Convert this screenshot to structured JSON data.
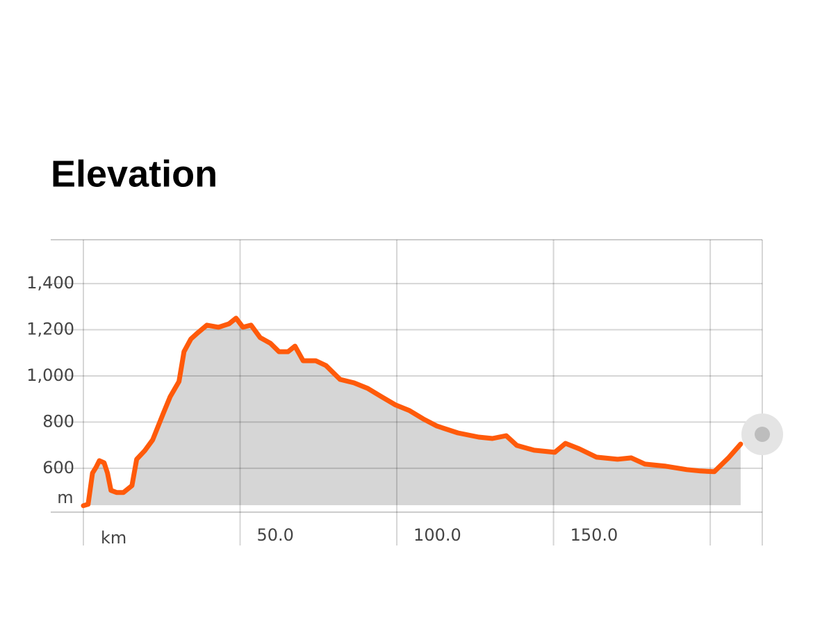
{
  "chart_data": {
    "type": "area",
    "title": "Elevation",
    "y_unit": "m",
    "x_unit": "km",
    "x": [
      0,
      1.5,
      2.9,
      4,
      5.1,
      6.6,
      7.7,
      8.8,
      10.6,
      12.8,
      15.5,
      17,
      19.5,
      22.1,
      25.4,
      27.7,
      30.5,
      32.1,
      34.3,
      36.5,
      39.4,
      43.1,
      46.5,
      48.7,
      50.9,
      53.5,
      56.4,
      59.7,
      62.4,
      65.3,
      67.5,
      70.1,
      74.1,
      77.4,
      81.9,
      86.3,
      90.7,
      95.1,
      99.6,
      104,
      108.4,
      112.8,
      119.5,
      126.1,
      130.5,
      134.9,
      138.3,
      143.8,
      150.4,
      153.8,
      158.2,
      163.7,
      170.4,
      174.8,
      179.2,
      185.8,
      192.5,
      196.9,
      201.3,
      205.8,
      209.7
    ],
    "series": [
      {
        "name": "Elevation",
        "color": "#ff5a0a",
        "fill": "#d6d6d6",
        "values": [
          438,
          444,
          579,
          603,
          633,
          624,
          579,
          504,
          495,
          495,
          525,
          639,
          675,
          723,
          835,
          910,
          976,
          1105,
          1160,
          1187,
          1220,
          1211,
          1226,
          1250,
          1211,
          1220,
          1166,
          1141,
          1105,
          1105,
          1129,
          1066,
          1066,
          1045,
          985,
          970,
          946,
          910,
          874,
          850,
          814,
          783,
          753,
          735,
          729,
          741,
          699,
          678,
          669,
          708,
          684,
          648,
          639,
          645,
          618,
          609,
          594,
          588,
          585,
          645,
          705
        ]
      }
    ],
    "xlim": [
      0,
      216.6
    ],
    "ylim": [
      440,
      1590
    ],
    "xticks": [
      {
        "value": 50,
        "label": "50.0"
      },
      {
        "value": 100,
        "label": "100.0"
      },
      {
        "value": 150,
        "label": "150.0"
      }
    ],
    "unlabeled_xticks": [
      0,
      200
    ],
    "yticks": [
      600,
      800,
      {
        "value": 1000,
        "label": "1,000"
      },
      {
        "value": 1200,
        "label": "1,200"
      },
      {
        "value": 1400,
        "label": "1,400"
      }
    ],
    "grid": true
  }
}
